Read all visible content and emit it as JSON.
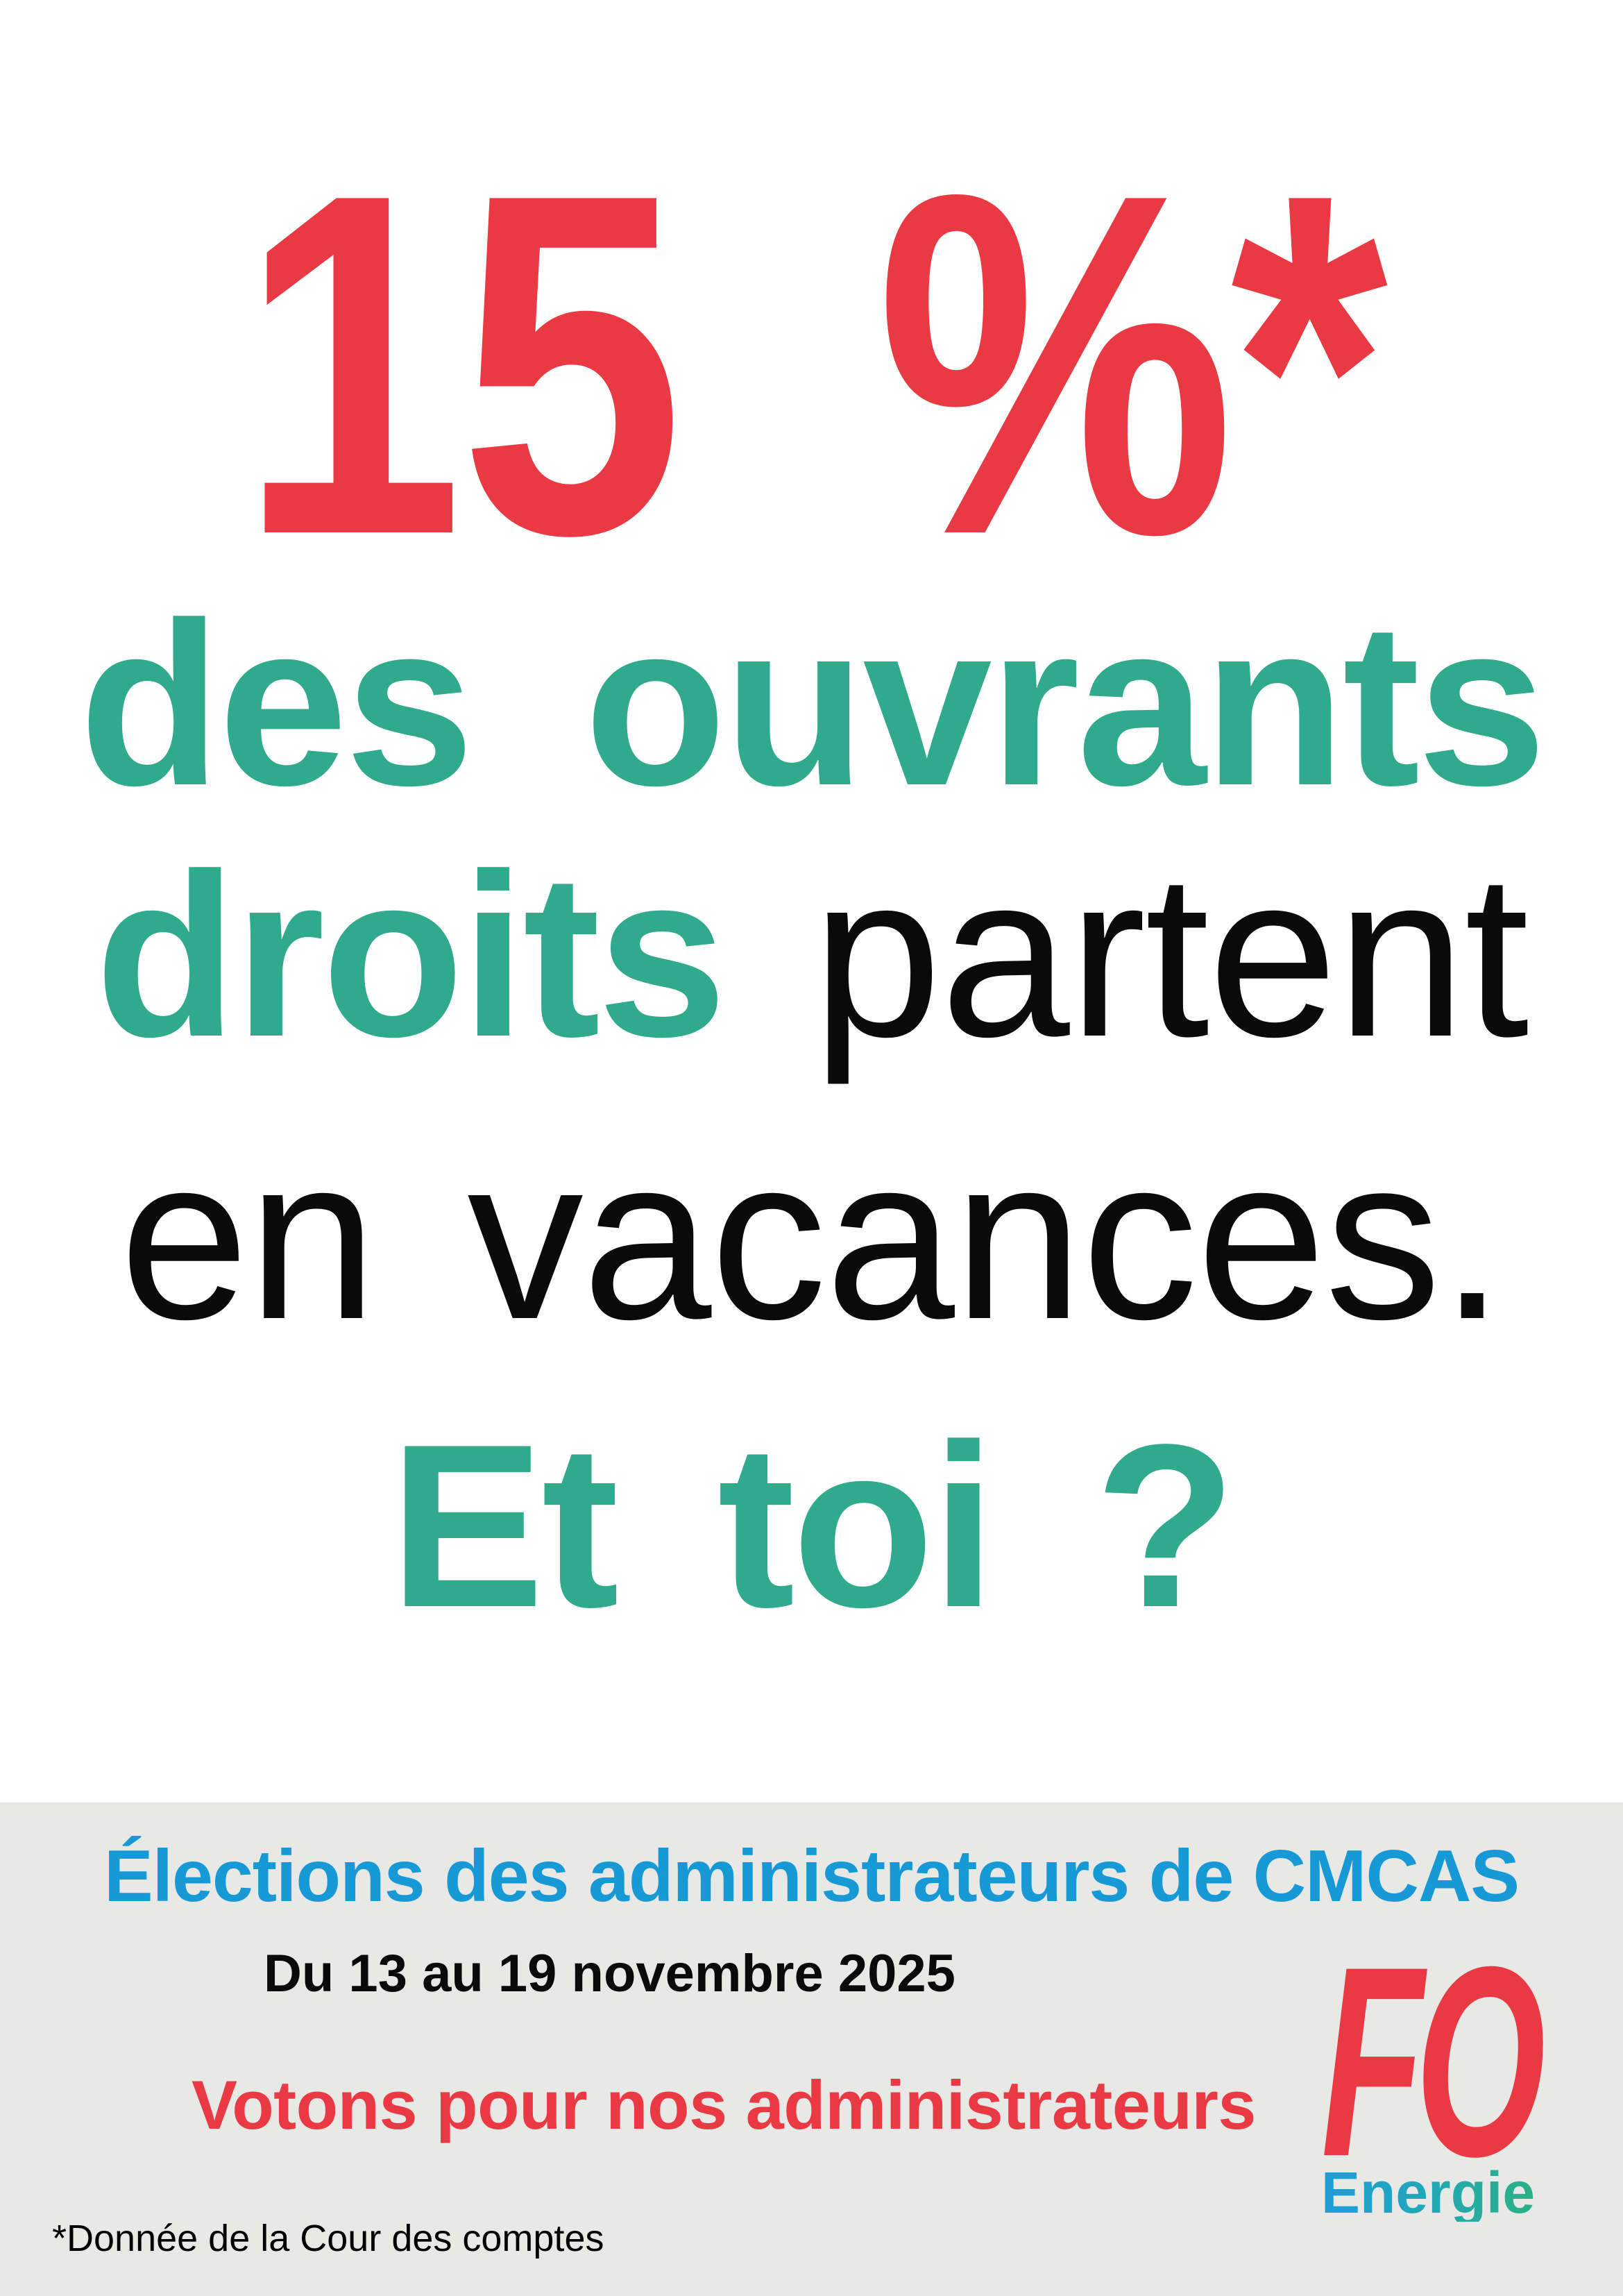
{
  "headline": {
    "stat": "15 %*"
  },
  "body": {
    "line2": "des ouvrants",
    "line3_highlight": "droits",
    "line3_rest": "partent",
    "line4": "en vacances.",
    "line5": "Et toi ?"
  },
  "footer": {
    "title": "Élections des administrateurs de CMCAS",
    "dates": "Du 13 au 19 novembre 2025",
    "cta": "Votons pour nos administrateurs",
    "logo": "FO",
    "logo_sub": "Energie",
    "footnote": "*Donnée de la Cour des comptes"
  },
  "colors": {
    "red": "#E93A44",
    "teal": "#2FAA8C",
    "blue": "#1699D5",
    "black": "#0A0A0A",
    "band_gray": "#E8E8E7",
    "energie_gradient_start": "#1E9CD9",
    "energie_gradient_end": "#2BB184"
  }
}
